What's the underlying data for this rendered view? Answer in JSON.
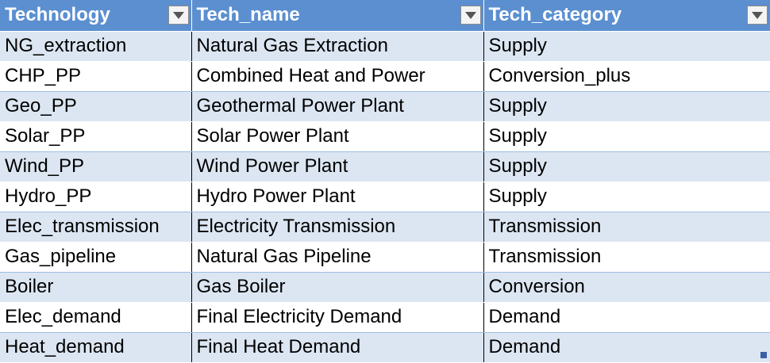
{
  "table": {
    "headers": [
      "Technology",
      "Tech_name",
      "Tech_category"
    ],
    "rows": [
      [
        "NG_extraction",
        "Natural Gas Extraction",
        "Supply"
      ],
      [
        "CHP_PP",
        "Combined Heat and Power",
        "Conversion_plus"
      ],
      [
        "Geo_PP",
        "Geothermal Power Plant",
        "Supply"
      ],
      [
        "Solar_PP",
        "Solar Power Plant",
        "Supply"
      ],
      [
        "Wind_PP",
        "Wind Power Plant",
        "Supply"
      ],
      [
        "Hydro_PP",
        "Hydro Power Plant",
        "Supply"
      ],
      [
        "Elec_transmission",
        "Electricity Transmission",
        "Transmission"
      ],
      [
        "Gas_pipeline",
        "Natural Gas Pipeline",
        "Transmission"
      ],
      [
        "Boiler",
        "Gas Boiler",
        "Conversion"
      ],
      [
        "Elec_demand",
        "Final Electricity Demand",
        "Demand"
      ],
      [
        "Heat_demand",
        "Final Heat Demand",
        "Demand"
      ]
    ]
  },
  "colors": {
    "header_bg": "#5b8fd0",
    "band_bg": "#dce6f2",
    "accent": "#3a5fa6"
  },
  "icons": {
    "filter": "filter-dropdown-icon",
    "resize": "table-resize-handle-icon"
  }
}
